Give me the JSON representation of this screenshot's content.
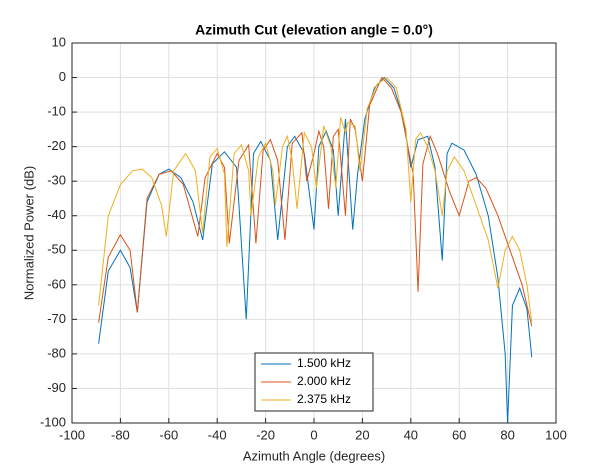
{
  "chart_data": {
    "type": "line",
    "title": "Azimuth Cut (elevation angle = 0.0°)",
    "xlabel": "Azimuth Angle (degrees)",
    "ylabel": "Normalized Power (dB)",
    "xlim": [
      -100,
      100
    ],
    "xticks": [
      -100,
      -80,
      -60,
      -40,
      -20,
      0,
      20,
      40,
      60,
      80,
      100
    ],
    "ylim": [
      -100,
      10
    ],
    "yticks": [
      -100,
      -90,
      -80,
      -70,
      -60,
      -50,
      -40,
      -30,
      -20,
      -10,
      0,
      10
    ],
    "grid": true,
    "legend": "lower center",
    "series": [
      {
        "name": "1.500 kHz",
        "color": "#0072bd",
        "x": [
          -89,
          -85,
          -80,
          -76,
          -73,
          -69,
          -64,
          -60,
          -55,
          -50,
          -46,
          -42,
          -37,
          -32,
          -28,
          -25,
          -22,
          -18,
          -15,
          -11,
          -8,
          -4,
          0,
          2,
          5,
          8,
          10,
          13,
          16,
          18,
          21,
          25,
          29,
          33,
          37,
          40,
          43,
          47,
          50,
          53,
          55,
          57,
          62,
          67,
          72,
          76,
          79,
          80,
          82,
          85,
          88,
          90
        ],
        "values": [
          -77,
          -56,
          -50,
          -55,
          -68,
          -36,
          -28,
          -26.5,
          -29,
          -36,
          -47,
          -25,
          -21.5,
          -26,
          -70,
          -22,
          -18.5,
          -24,
          -47,
          -20,
          -17,
          -22,
          -44,
          -20,
          -15.5,
          -21,
          -40,
          -12,
          -44,
          -28,
          -12,
          -3,
          0,
          -3,
          -12,
          -26,
          -18,
          -17,
          -26,
          -53,
          -22,
          -19,
          -21,
          -28,
          -40,
          -58,
          -80,
          -100,
          -66,
          -61,
          -67,
          -81
        ]
      },
      {
        "name": "2.000 kHz",
        "color": "#d95319",
        "x": [
          -89,
          -85,
          -80,
          -76,
          -73,
          -69,
          -64,
          -59,
          -54,
          -48,
          -45,
          -40,
          -37,
          -35,
          -31,
          -27,
          -24,
          -21,
          -18,
          -15,
          -12,
          -9,
          -5,
          -3,
          0,
          2,
          4,
          6,
          8,
          10,
          13,
          15,
          17,
          20,
          23,
          28,
          32,
          36,
          41,
          43,
          45,
          48,
          51,
          56,
          60,
          64,
          67,
          71,
          76,
          81,
          86,
          90
        ],
        "values": [
          -71,
          -52,
          -45.5,
          -50,
          -68,
          -35,
          -28,
          -27,
          -31,
          -46,
          -29,
          -22,
          -26,
          -48,
          -24,
          -19.5,
          -48,
          -21,
          -18,
          -24,
          -47,
          -19,
          -16,
          -30,
          -22,
          -15.5,
          -20,
          -38,
          -17,
          -15,
          -40,
          -12,
          -15,
          -30,
          -8,
          0,
          -3,
          -10,
          -28,
          -62,
          -25,
          -17,
          -22,
          -33,
          -40,
          -30,
          -29,
          -32,
          -40,
          -50,
          -60,
          -72
        ]
      },
      {
        "name": "2.375 kHz",
        "color": "#edb120",
        "x": [
          -89,
          -85,
          -80,
          -75,
          -71,
          -67,
          -63,
          -61,
          -58,
          -53,
          -49,
          -46,
          -43,
          -40,
          -37,
          -36,
          -33,
          -30,
          -27,
          -26,
          -23,
          -20,
          -17,
          -16,
          -13,
          -11,
          -9,
          -7,
          -4,
          -1,
          1,
          4,
          7,
          9,
          11,
          13,
          14,
          17,
          19,
          22,
          26,
          30,
          34,
          38,
          40,
          42,
          44,
          47,
          50,
          53,
          55,
          58,
          62,
          67,
          72,
          76,
          79,
          82,
          85,
          88,
          90
        ],
        "values": [
          -66,
          -40,
          -31,
          -27,
          -26.5,
          -29,
          -37,
          -46,
          -27,
          -22,
          -27,
          -45,
          -23,
          -20.5,
          -28,
          -49,
          -22,
          -19.5,
          -27,
          -40,
          -23,
          -19,
          -27,
          -37,
          -20,
          -17,
          -24,
          -38,
          -16,
          -20,
          -32,
          -14,
          -20,
          -32,
          -11.5,
          -16,
          -13,
          -14,
          -27,
          -9,
          -2,
          0,
          -3,
          -15,
          -36,
          -18,
          -16,
          -20,
          -27,
          -40,
          -27,
          -23,
          -27,
          -37,
          -47,
          -61,
          -50,
          -46,
          -50,
          -60,
          -71
        ]
      }
    ]
  }
}
